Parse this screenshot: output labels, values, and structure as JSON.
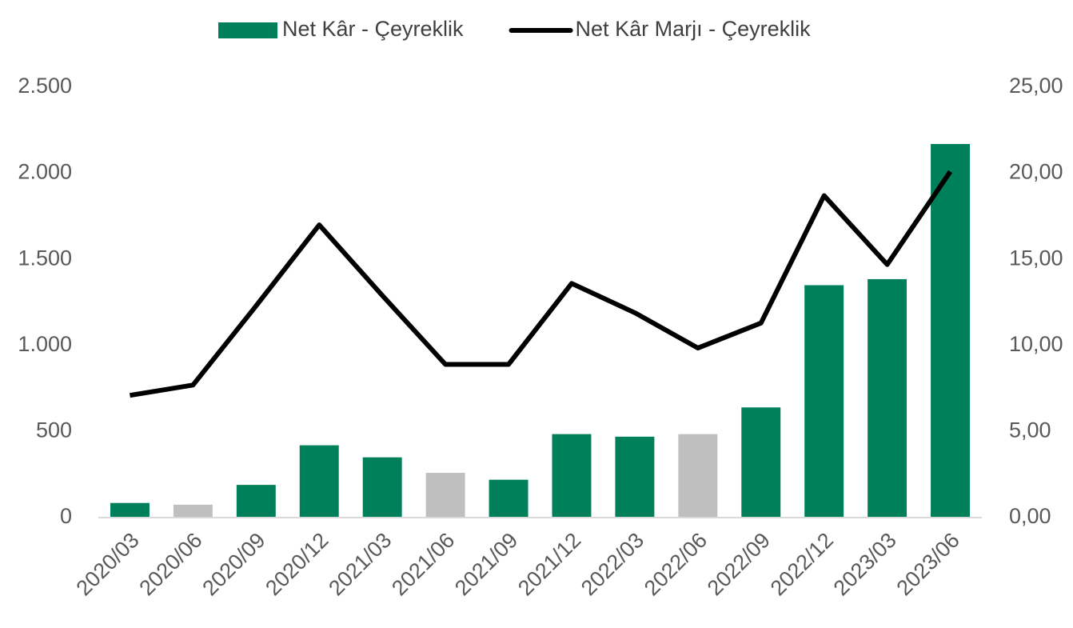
{
  "chart_data": {
    "type": "bar_line",
    "categories": [
      "2020/03",
      "2020/06",
      "2020/09",
      "2020/12",
      "2021/03",
      "2021/06",
      "2021/09",
      "2021/12",
      "2022/03",
      "2022/06",
      "2022/09",
      "2022/12",
      "2023/03",
      "2023/06"
    ],
    "series": [
      {
        "name": "Net Kâr - Çeyreklik",
        "color": "#00805a",
        "type": "bar",
        "colors": [
          "#00805a",
          "#bfbfbf",
          "#00805a",
          "#00805a",
          "#00805a",
          "#bfbfbf",
          "#00805a",
          "#00805a",
          "#00805a",
          "#bfbfbf",
          "#00805a",
          "#00805a",
          "#00805a",
          "#00805a"
        ],
        "values": [
          85,
          75,
          190,
          420,
          350,
          260,
          220,
          485,
          470,
          485,
          640,
          1350,
          1385,
          2170
        ]
      },
      {
        "name": "Net Kâr Marjı - Çeyreklik",
        "color": "#000000",
        "type": "line",
        "axis": "y2",
        "values": [
          7.1,
          7.7,
          12.3,
          17.0,
          12.9,
          8.9,
          8.9,
          13.6,
          11.9,
          9.85,
          11.3,
          18.7,
          14.7,
          20.1
        ]
      }
    ],
    "ylim": [
      0,
      2500
    ],
    "yticks": [
      0,
      {
        "value": 500,
        "label": "500"
      },
      {
        "value": 1000,
        "label": "1.000"
      },
      {
        "value": 1500,
        "label": "1.500"
      },
      {
        "value": 2000,
        "label": "2.000"
      },
      {
        "value": 2500,
        "label": "2.500"
      }
    ],
    "y2lim": [
      0,
      25
    ],
    "y2ticks": [
      {
        "value": 0,
        "label": "0,00"
      },
      {
        "value": 5,
        "label": "5,00"
      },
      {
        "value": 10,
        "label": "10,00"
      },
      {
        "value": 15,
        "label": "15,00"
      },
      {
        "value": 20,
        "label": "20,00"
      },
      {
        "value": 25,
        "label": "25,00"
      }
    ],
    "legend": "top",
    "grid": false
  }
}
